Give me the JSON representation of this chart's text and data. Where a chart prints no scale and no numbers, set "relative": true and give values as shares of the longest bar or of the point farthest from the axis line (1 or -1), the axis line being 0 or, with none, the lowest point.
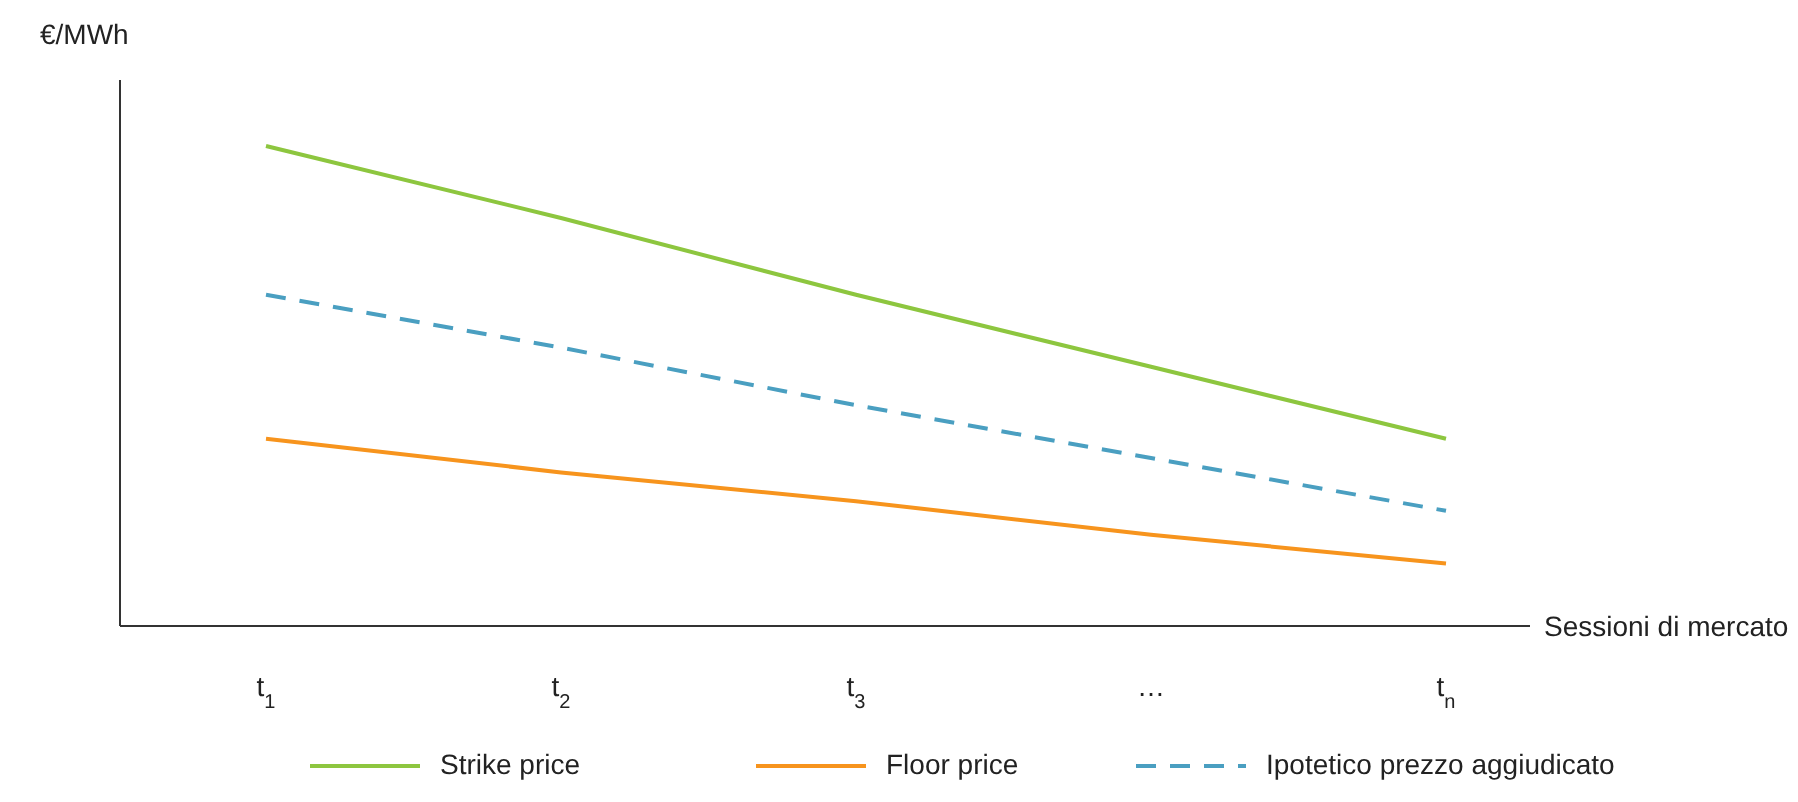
{
  "chart_data": {
    "type": "line",
    "relative": true,
    "ylabel": "€/MWh",
    "xlabel": "Sessioni di mercato",
    "categories": [
      "t$_{1}$",
      "t$_{2}$",
      "t$_{3}$",
      "…",
      "t$_{n}$"
    ],
    "series": [
      {
        "name": "Strike price",
        "color": "#8dc63f",
        "line_style": "solid",
        "values": [
          1,
          0.85,
          0.69,
          0.54,
          0.39
        ]
      },
      {
        "name": "Floor price",
        "color": "#f7941d",
        "line_style": "solid",
        "values": [
          0.39,
          0.32,
          0.26,
          0.19,
          0.13
        ]
      },
      {
        "name": "Ipotetico prezzo aggiudicato",
        "color": "#4a9fc1",
        "line_style": "dashed",
        "values": [
          0.69,
          0.58,
          0.46,
          0.35,
          0.24
        ]
      }
    ],
    "legend": "bottom",
    "grid": false,
    "marker": "none"
  }
}
